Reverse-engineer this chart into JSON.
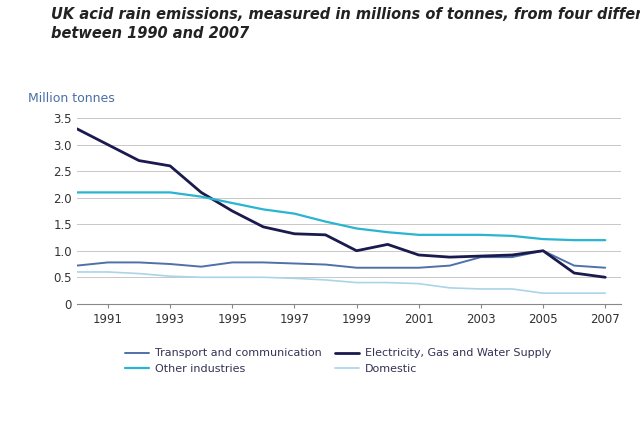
{
  "title_line1": "UK acid rain emissions, measured in millions of tonnes, from four different sectors",
  "title_line2": "between 1990 and 2007",
  "ylabel": "Million tonnes",
  "years": [
    1990,
    1991,
    1992,
    1993,
    1994,
    1995,
    1996,
    1997,
    1998,
    1999,
    2000,
    2001,
    2002,
    2003,
    2004,
    2005,
    2006,
    2007
  ],
  "series": {
    "Transport and communication": {
      "values": [
        0.72,
        0.78,
        0.78,
        0.75,
        0.7,
        0.78,
        0.78,
        0.76,
        0.74,
        0.68,
        0.68,
        0.68,
        0.72,
        0.88,
        0.88,
        1.0,
        0.72,
        0.68
      ],
      "color": "#5070a8",
      "linewidth": 1.4
    },
    "Electricity, Gas and Water Supply": {
      "values": [
        3.3,
        3.0,
        2.7,
        2.6,
        2.1,
        1.75,
        1.45,
        1.32,
        1.3,
        1.0,
        1.12,
        0.92,
        0.88,
        0.9,
        0.92,
        1.0,
        0.58,
        0.5
      ],
      "color": "#1a1a4e",
      "linewidth": 2.0
    },
    "Other industries": {
      "values": [
        2.1,
        2.1,
        2.1,
        2.1,
        2.02,
        1.9,
        1.78,
        1.7,
        1.55,
        1.42,
        1.35,
        1.3,
        1.3,
        1.3,
        1.28,
        1.22,
        1.2,
        1.2
      ],
      "color": "#29b5d0",
      "linewidth": 1.6
    },
    "Domestic": {
      "values": [
        0.6,
        0.6,
        0.57,
        0.52,
        0.5,
        0.5,
        0.5,
        0.48,
        0.45,
        0.4,
        0.4,
        0.38,
        0.3,
        0.28,
        0.28,
        0.2,
        0.2,
        0.2
      ],
      "color": "#aad4e8",
      "linewidth": 1.2
    }
  },
  "xlim": [
    1990,
    2007.5
  ],
  "ylim": [
    0,
    3.6
  ],
  "yticks": [
    0,
    0.5,
    1.0,
    1.5,
    2.0,
    2.5,
    3.0,
    3.5
  ],
  "xticks": [
    1991,
    1993,
    1995,
    1997,
    1999,
    2001,
    2003,
    2005,
    2007
  ],
  "background_color": "#ffffff",
  "grid_color": "#c8c8c8",
  "title_fontsize": 10.5,
  "ylabel_fontsize": 9,
  "tick_fontsize": 8.5,
  "legend_fontsize": 8.0,
  "legend_order": [
    0,
    2,
    1,
    3
  ],
  "legend_labels": [
    "Transport and communication",
    "Other industries",
    "Electricity, Gas and Water Supply",
    "Domestic"
  ]
}
